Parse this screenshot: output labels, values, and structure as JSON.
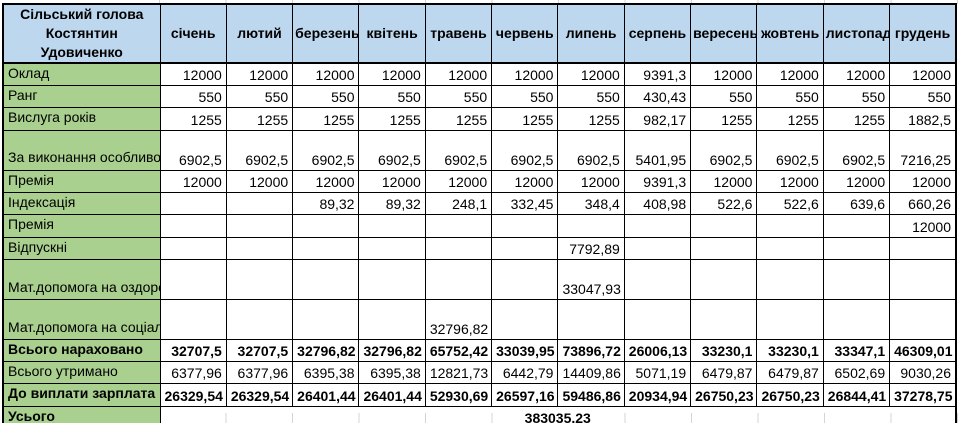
{
  "header": {
    "title": "Сільський голова Костянтин Удовиченко",
    "months": [
      "січень",
      "лютий",
      "березень",
      "квітень",
      "травень",
      "червень",
      "липень",
      "серпень",
      "вересень",
      "жовтень",
      "листопад",
      "грудень"
    ]
  },
  "rows": [
    {
      "label": "Оклад",
      "bold": false,
      "tall": false,
      "values": [
        "12000",
        "12000",
        "12000",
        "12000",
        "12000",
        "12000",
        "12000",
        "9391,3",
        "12000",
        "12000",
        "12000",
        "12000"
      ]
    },
    {
      "label": "Ранг",
      "bold": false,
      "tall": false,
      "values": [
        "550",
        "550",
        "550",
        "550",
        "550",
        "550",
        "550",
        "430,43",
        "550",
        "550",
        "550",
        "550"
      ]
    },
    {
      "label": "Вислуга років",
      "bold": false,
      "tall": false,
      "values": [
        "1255",
        "1255",
        "1255",
        "1255",
        "1255",
        "1255",
        "1255",
        "982,17",
        "1255",
        "1255",
        "1255",
        "1882,5"
      ]
    },
    {
      "label": "За виконання особливо важл.роб.",
      "bold": false,
      "tall": true,
      "values": [
        "6902,5",
        "6902,5",
        "6902,5",
        "6902,5",
        "6902,5",
        "6902,5",
        "6902,5",
        "5401,95",
        "6902,5",
        "6902,5",
        "6902,5",
        "7216,25"
      ]
    },
    {
      "label": "Премія",
      "bold": false,
      "tall": false,
      "values": [
        "12000",
        "12000",
        "12000",
        "12000",
        "12000",
        "12000",
        "12000",
        "9391,3",
        "12000",
        "12000",
        "12000",
        "12000"
      ]
    },
    {
      "label": "Індексація",
      "bold": false,
      "tall": false,
      "values": [
        "",
        "",
        "89,32",
        "89,32",
        "248,1",
        "332,45",
        "348,4",
        "408,98",
        "522,6",
        "522,6",
        "639,6",
        "660,26"
      ]
    },
    {
      "label": "Премія",
      "bold": false,
      "tall": false,
      "values": [
        "",
        "",
        "",
        "",
        "",
        "",
        "",
        "",
        "",
        "",
        "",
        "12000"
      ]
    },
    {
      "label": "Відпускні",
      "bold": false,
      "tall": false,
      "values": [
        "",
        "",
        "",
        "",
        "",
        "",
        "7792,89",
        "",
        "",
        "",
        "",
        ""
      ]
    },
    {
      "label": "Мат.допомога на оздоровлення",
      "bold": false,
      "tall": true,
      "values": [
        "",
        "",
        "",
        "",
        "",
        "",
        "33047,93",
        "",
        "",
        "",
        "",
        ""
      ]
    },
    {
      "label": "Мат.допомога на соціально-побут.пит.",
      "bold": false,
      "tall": true,
      "values": [
        "",
        "",
        "",
        "",
        "32796,82",
        "",
        "",
        "",
        "",
        "",
        "",
        ""
      ]
    },
    {
      "label": "Всього нараховано",
      "bold": true,
      "tall": false,
      "values": [
        "32707,5",
        "32707,5",
        "32796,82",
        "32796,82",
        "65752,42",
        "33039,95",
        "73896,72",
        "26006,13",
        "33230,1",
        "33230,1",
        "33347,1",
        "46309,01"
      ]
    },
    {
      "label": "Всього утримано",
      "bold": false,
      "tall": false,
      "values": [
        "6377,96",
        "6377,96",
        "6395,38",
        "6395,38",
        "12821,73",
        "6442,79",
        "14409,86",
        "5071,19",
        "6479,87",
        "6479,87",
        "6502,69",
        "9030,26"
      ]
    },
    {
      "label": "До виплати зарплата",
      "bold": true,
      "tall": false,
      "values": [
        "26329,54",
        "26329,54",
        "26401,44",
        "26401,44",
        "52930,69",
        "26597,16",
        "59486,86",
        "20934,94",
        "26750,23",
        "26750,23",
        "26844,41",
        "37278,75"
      ]
    }
  ],
  "total_row": {
    "label": "Усього",
    "value": "383035,23"
  },
  "colors": {
    "header_bg": "#BDD7EE",
    "label_bg": "#A9D08E",
    "border": "#000000",
    "gridline": "#D4D4D4"
  }
}
